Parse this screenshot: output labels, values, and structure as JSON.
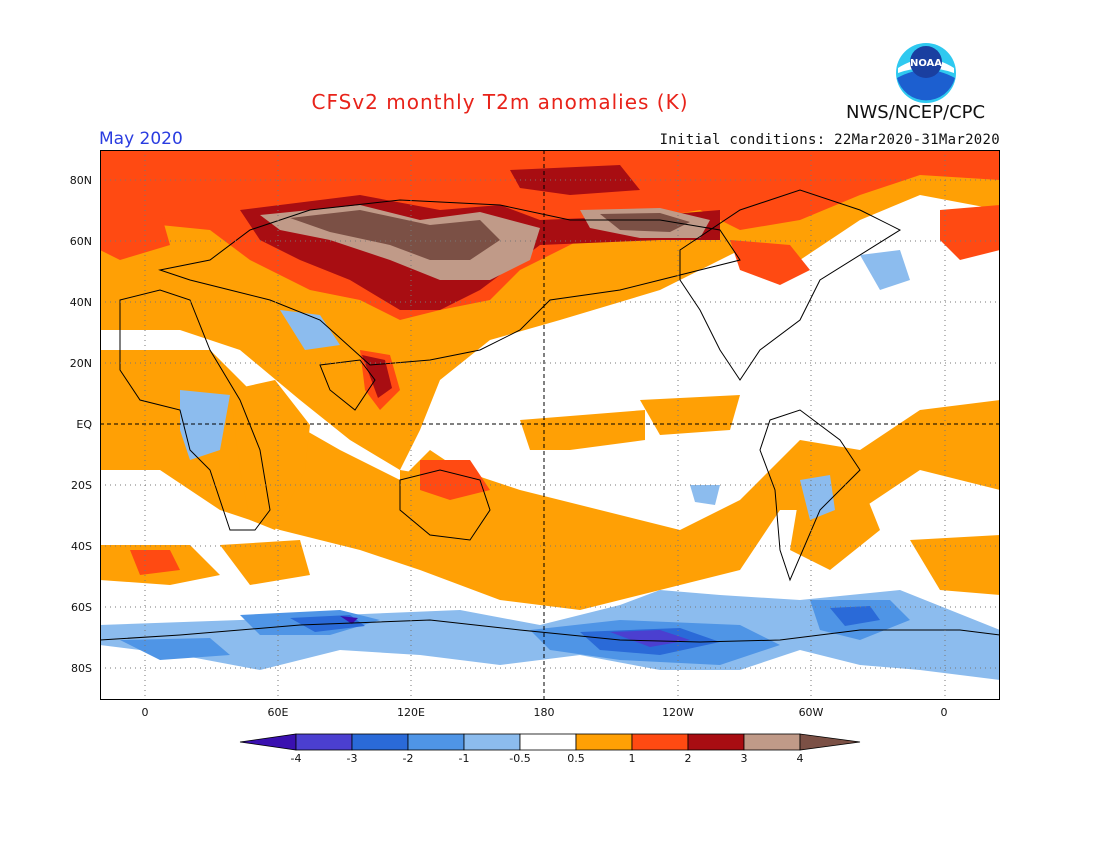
{
  "header": {
    "title": "CFSv2 monthly T2m anomalies (K)",
    "agency": "NWS/NCEP/CPC",
    "logo_text": "NOAA",
    "valid_month": "May 2020",
    "initial_conditions": "Initial conditions: 22Mar2020-31Mar2020"
  },
  "map": {
    "lat_labels": [
      "80N",
      "60N",
      "40N",
      "20N",
      "EQ",
      "20S",
      "40S",
      "60S",
      "80S"
    ],
    "lon_labels": [
      "0",
      "60E",
      "120E",
      "180",
      "120W",
      "60W",
      "0"
    ]
  },
  "legend": {
    "levels": [
      "-4",
      "-3",
      "-2",
      "-1",
      "-0.5",
      "0.5",
      "1",
      "2",
      "3",
      "4"
    ],
    "colors": [
      "#3a10b0",
      "#4b3fd0",
      "#2a6ad8",
      "#4f95e6",
      "#8cbcee",
      "#ffffff",
      "#ffa005",
      "#ff4a12",
      "#a80d12",
      "#c09a88",
      "#7b5045"
    ]
  }
}
